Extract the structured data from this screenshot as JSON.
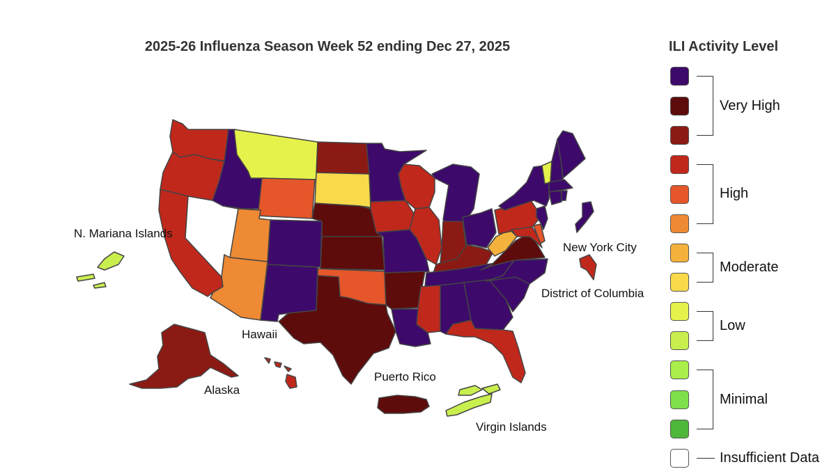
{
  "title": "2025-26 Influenza Season Week 52 ending Dec 27, 2025",
  "legend": {
    "title": "ILI Activity Level",
    "levels": [
      {
        "color": "#3d0a6b"
      },
      {
        "color": "#5e0b0b"
      },
      {
        "color": "#8c1a14"
      },
      {
        "color": "#c0281c"
      },
      {
        "color": "#e5572a"
      },
      {
        "color": "#ee8a34"
      },
      {
        "color": "#f4b13c"
      },
      {
        "color": "#f8d94a"
      },
      {
        "color": "#e6f24c"
      },
      {
        "color": "#c9ef4f"
      },
      {
        "color": "#a9ee4a"
      },
      {
        "color": "#7ee04b"
      },
      {
        "color": "#4fb83a"
      },
      {
        "color": "#ffffff"
      }
    ],
    "groups": [
      "Very High",
      "High",
      "Moderate",
      "Low",
      "Minimal",
      "Insufficient Data"
    ]
  },
  "labels": {
    "mariana": "N. Mariana Islands",
    "hawaii": "Hawaii",
    "alaska": "Alaska",
    "puerto_rico": "Puerto Rico",
    "virgin_islands": "Virgin Islands",
    "nyc": "New York City",
    "dc": "District of Columbia"
  },
  "regions": [
    {
      "name": "Washington",
      "level": 3
    },
    {
      "name": "Oregon",
      "level": 3
    },
    {
      "name": "California",
      "level": 3
    },
    {
      "name": "Idaho",
      "level": 0
    },
    {
      "name": "Nevada",
      "level": 13
    },
    {
      "name": "Montana",
      "level": 8
    },
    {
      "name": "Wyoming",
      "level": 4
    },
    {
      "name": "Utah",
      "level": 5
    },
    {
      "name": "Arizona",
      "level": 5
    },
    {
      "name": "Colorado",
      "level": 0
    },
    {
      "name": "New Mexico",
      "level": 0
    },
    {
      "name": "North Dakota",
      "level": 2
    },
    {
      "name": "South Dakota",
      "level": 7
    },
    {
      "name": "Nebraska",
      "level": 1
    },
    {
      "name": "Kansas",
      "level": 1
    },
    {
      "name": "Oklahoma",
      "level": 4
    },
    {
      "name": "Texas",
      "level": 1
    },
    {
      "name": "Minnesota",
      "level": 0
    },
    {
      "name": "Iowa",
      "level": 3
    },
    {
      "name": "Missouri",
      "level": 0
    },
    {
      "name": "Arkansas",
      "level": 1
    },
    {
      "name": "Louisiana",
      "level": 0
    },
    {
      "name": "Wisconsin",
      "level": 3
    },
    {
      "name": "Illinois",
      "level": 3
    },
    {
      "name": "Michigan",
      "level": 0
    },
    {
      "name": "Indiana",
      "level": 2
    },
    {
      "name": "Ohio",
      "level": 0
    },
    {
      "name": "Kentucky",
      "level": 2
    },
    {
      "name": "Tennessee",
      "level": 0
    },
    {
      "name": "Mississippi",
      "level": 3
    },
    {
      "name": "Alabama",
      "level": 0
    },
    {
      "name": "Georgia",
      "level": 0
    },
    {
      "name": "Florida",
      "level": 3
    },
    {
      "name": "South Carolina",
      "level": 0
    },
    {
      "name": "North Carolina",
      "level": 0
    },
    {
      "name": "Virginia",
      "level": 1
    },
    {
      "name": "West Virginia",
      "level": 6
    },
    {
      "name": "Pennsylvania",
      "level": 3
    },
    {
      "name": "Maryland",
      "level": 3
    },
    {
      "name": "Delaware",
      "level": 4
    },
    {
      "name": "New Jersey",
      "level": 0
    },
    {
      "name": "New York",
      "level": 0
    },
    {
      "name": "Connecticut",
      "level": 0
    },
    {
      "name": "Rhode Island",
      "level": 0
    },
    {
      "name": "Massachusetts",
      "level": 0
    },
    {
      "name": "Vermont",
      "level": 8
    },
    {
      "name": "New Hampshire",
      "level": 0
    },
    {
      "name": "Maine",
      "level": 0
    },
    {
      "name": "New York City",
      "level": 0
    },
    {
      "name": "District of Columbia",
      "level": 3
    },
    {
      "name": "Alaska",
      "level": 2
    },
    {
      "name": "Hawaii",
      "level": 3
    },
    {
      "name": "Puerto Rico",
      "level": 1
    },
    {
      "name": "Virgin Islands",
      "level": 9
    },
    {
      "name": "N. Mariana Islands",
      "level": 9
    }
  ]
}
